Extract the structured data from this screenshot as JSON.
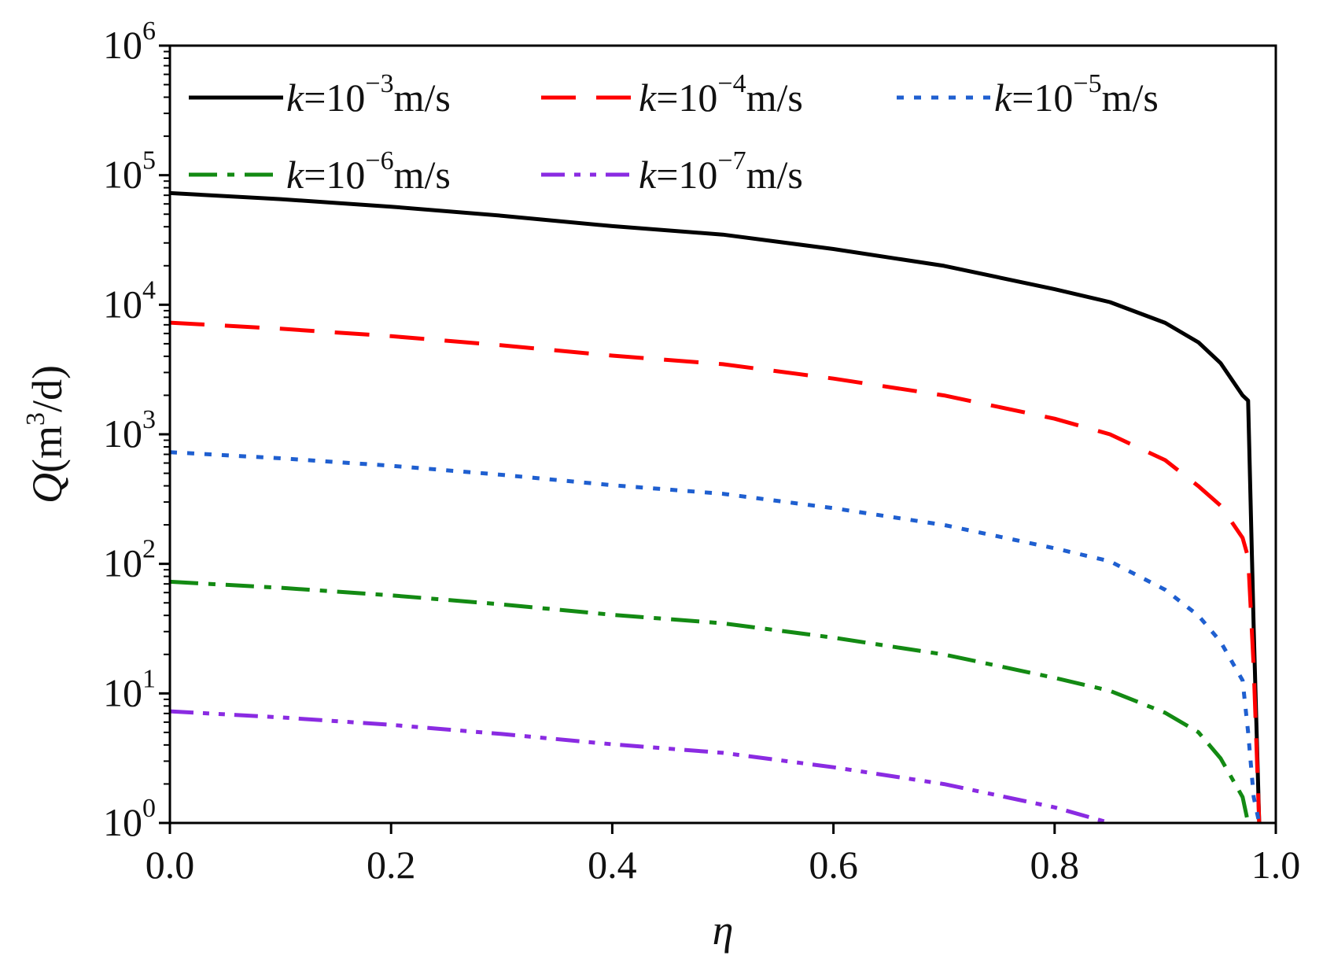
{
  "chart_data": {
    "type": "line",
    "title": "",
    "xlabel": "η",
    "ylabel": {
      "var": "Q",
      "unit_pre": "(m",
      "unit_sup": "3",
      "unit_post": "/d)"
    },
    "xlim": [
      0.0,
      1.0
    ],
    "ylim_log10": [
      0,
      6
    ],
    "yscale": "log",
    "x_ticks": [
      "0.0",
      "0.2",
      "0.4",
      "0.6",
      "0.8",
      "1.0"
    ],
    "x_tick_values": [
      0.0,
      0.2,
      0.4,
      0.6,
      0.8,
      1.0
    ],
    "y_ticks": [
      {
        "base": "10",
        "exp": "0",
        "value": 0
      },
      {
        "base": "10",
        "exp": "1",
        "value": 1
      },
      {
        "base": "10",
        "exp": "2",
        "value": 2
      },
      {
        "base": "10",
        "exp": "3",
        "value": 3
      },
      {
        "base": "10",
        "exp": "4",
        "value": 4
      },
      {
        "base": "10",
        "exp": "5",
        "value": 5
      },
      {
        "base": "10",
        "exp": "6",
        "value": 6
      }
    ],
    "legend_position": "top",
    "x": [
      0.0,
      0.1,
      0.2,
      0.3,
      0.4,
      0.5,
      0.6,
      0.7,
      0.8,
      0.85,
      0.9,
      0.93,
      0.95,
      0.97,
      0.975,
      0.98,
      0.985
    ],
    "series": [
      {
        "name_var": "k",
        "name_pre": "=10",
        "name_exp": "−3",
        "name_post": "m/s",
        "color": "#000000",
        "dash": "",
        "log10_values": [
          4.862,
          4.815,
          4.757,
          4.687,
          4.607,
          4.541,
          4.43,
          4.3,
          4.12,
          4.02,
          3.86,
          3.71,
          3.55,
          3.3,
          3.26,
          1.5,
          0.0
        ]
      },
      {
        "name_var": "k",
        "name_pre": "=10",
        "name_exp": "−4",
        "name_post": "m/s",
        "color": "#ff0000",
        "dash": "44 26",
        "log10_values": [
          3.862,
          3.815,
          3.757,
          3.687,
          3.607,
          3.541,
          3.43,
          3.3,
          3.12,
          3.0,
          2.8,
          2.6,
          2.45,
          2.2,
          2.05,
          1.2,
          0.0
        ]
      },
      {
        "name_var": "k",
        "name_pre": "=10",
        "name_exp": "−5",
        "name_post": "m/s",
        "color": "#1f5fd0",
        "dash": "9 13",
        "log10_values": [
          2.862,
          2.815,
          2.757,
          2.687,
          2.607,
          2.541,
          2.43,
          2.3,
          2.12,
          2.02,
          1.8,
          1.6,
          1.4,
          1.1,
          0.7,
          0.2,
          0.0
        ]
      },
      {
        "name_var": "k",
        "name_pre": "=10",
        "name_exp": "−6",
        "name_post": "m/s",
        "color": "#138a13",
        "dash": "36 13 9 13",
        "log10_values": [
          1.862,
          1.815,
          1.757,
          1.687,
          1.607,
          1.541,
          1.43,
          1.3,
          1.12,
          1.02,
          0.85,
          0.7,
          0.5,
          0.2,
          0.0
        ]
      },
      {
        "name_var": "k",
        "name_pre": "=10",
        "name_exp": "−7",
        "name_post": "m/s",
        "color": "#8a2be2",
        "dash": "30 12 8 12 8 12",
        "log10_values": [
          0.862,
          0.815,
          0.757,
          0.687,
          0.607,
          0.541,
          0.43,
          0.3,
          0.12,
          0.0
        ]
      }
    ]
  }
}
